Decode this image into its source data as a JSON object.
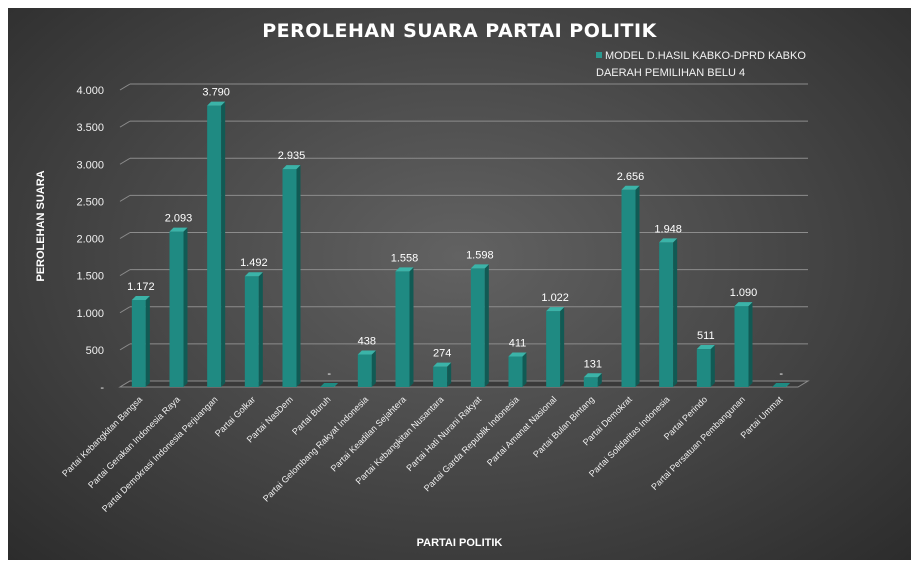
{
  "chart_data": {
    "type": "bar",
    "title": "PEROLEHAN SUARA PARTAI POLITIK",
    "xlabel": "PARTAI POLITIK",
    "ylabel": "PEROLEHAN SUARA",
    "ylim": [
      0,
      4000
    ],
    "yticks": [
      {
        "value": 0,
        "label": "-"
      },
      {
        "value": 500,
        "label": "500"
      },
      {
        "value": 1000,
        "label": "1.000"
      },
      {
        "value": 1500,
        "label": "1.500"
      },
      {
        "value": 2000,
        "label": "2.000"
      },
      {
        "value": 2500,
        "label": "2.500"
      },
      {
        "value": 3000,
        "label": "3.000"
      },
      {
        "value": 3500,
        "label": "3.500"
      },
      {
        "value": 4000,
        "label": "4.000"
      }
    ],
    "grid": true,
    "legend_position": "top-right",
    "series": [
      {
        "name": "MODEL D.HASIL KABKO-DPRD KABKO DAERAH PEMILIHAN BELU 4",
        "color": "#1f8a82",
        "values": [
          1172,
          2093,
          3790,
          1492,
          2935,
          0,
          438,
          1558,
          274,
          1598,
          411,
          1022,
          131,
          2656,
          1948,
          511,
          1090,
          0
        ],
        "data_labels": [
          "1.172",
          "2.093",
          "3.790",
          "1.492",
          "2.935",
          "-",
          "438",
          "1.558",
          "274",
          "1.598",
          "411",
          "1.022",
          "131",
          "2.656",
          "1.948",
          "511",
          "1.090",
          "-"
        ]
      }
    ],
    "categories": [
      "Partai Kebangkitan Bangsa",
      "Partai Gerakan Indonesia Raya",
      "Partai Demokrasi Indonesia Perjuangan",
      "Partai Golkar",
      "Partai NasDem",
      "Partai Buruh",
      "Partai Gelombang Rakyat Indonesia",
      "Partai Keadilan Sejahtera",
      "Partai Kebangkitan Nusantara",
      "Partai Hati Nurani Rakyat",
      "Partai Garda Republik Indonesia",
      "Partai Amanat Nasional",
      "Partai Bulan Bintang",
      "Partai Demokrat",
      "Partai Solidaritas Indonesia",
      "Partai Perindo",
      "Partai Persatuan Pembangunan",
      "Partai Ummat"
    ]
  }
}
